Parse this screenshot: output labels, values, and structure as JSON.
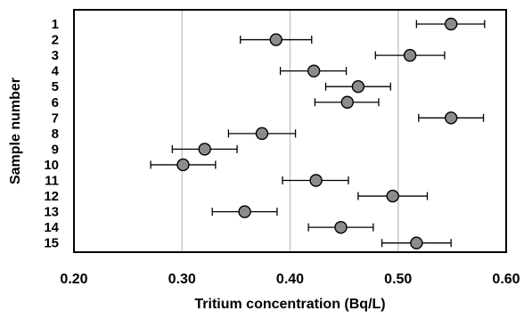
{
  "chart_data": {
    "type": "scatter",
    "xlabel": "Tritium concentration (Bq/L)",
    "ylabel": "Sample number",
    "xlim": [
      0.2,
      0.6
    ],
    "x_ticks": [
      "0.20",
      "0.30",
      "0.40",
      "0.50",
      "0.60"
    ],
    "y_categories": [
      "1",
      "2",
      "3",
      "4",
      "5",
      "6",
      "7",
      "8",
      "9",
      "10",
      "11",
      "12",
      "13",
      "14",
      "15"
    ],
    "grid": "vertical",
    "error_bars": true,
    "marker_color": "#8c8c8c",
    "points": [
      {
        "sample": "1",
        "x": 0.549,
        "xerr_low": 0.517,
        "xerr_high": 0.58
      },
      {
        "sample": "2",
        "x": 0.387,
        "xerr_low": 0.354,
        "xerr_high": 0.42
      },
      {
        "sample": "3",
        "x": 0.511,
        "xerr_low": 0.479,
        "xerr_high": 0.543
      },
      {
        "sample": "4",
        "x": 0.422,
        "xerr_low": 0.391,
        "xerr_high": 0.452
      },
      {
        "sample": "5",
        "x": 0.463,
        "xerr_low": 0.433,
        "xerr_high": 0.493
      },
      {
        "sample": "6",
        "x": 0.453,
        "xerr_low": 0.423,
        "xerr_high": 0.482
      },
      {
        "sample": "7",
        "x": 0.549,
        "xerr_low": 0.519,
        "xerr_high": 0.579
      },
      {
        "sample": "8",
        "x": 0.374,
        "xerr_low": 0.343,
        "xerr_high": 0.405
      },
      {
        "sample": "9",
        "x": 0.321,
        "xerr_low": 0.291,
        "xerr_high": 0.351
      },
      {
        "sample": "10",
        "x": 0.301,
        "xerr_low": 0.271,
        "xerr_high": 0.331
      },
      {
        "sample": "11",
        "x": 0.424,
        "xerr_low": 0.393,
        "xerr_high": 0.454
      },
      {
        "sample": "12",
        "x": 0.495,
        "xerr_low": 0.463,
        "xerr_high": 0.527
      },
      {
        "sample": "13",
        "x": 0.358,
        "xerr_low": 0.328,
        "xerr_high": 0.388
      },
      {
        "sample": "14",
        "x": 0.447,
        "xerr_low": 0.417,
        "xerr_high": 0.477
      },
      {
        "sample": "15",
        "x": 0.517,
        "xerr_low": 0.485,
        "xerr_high": 0.549
      }
    ]
  }
}
